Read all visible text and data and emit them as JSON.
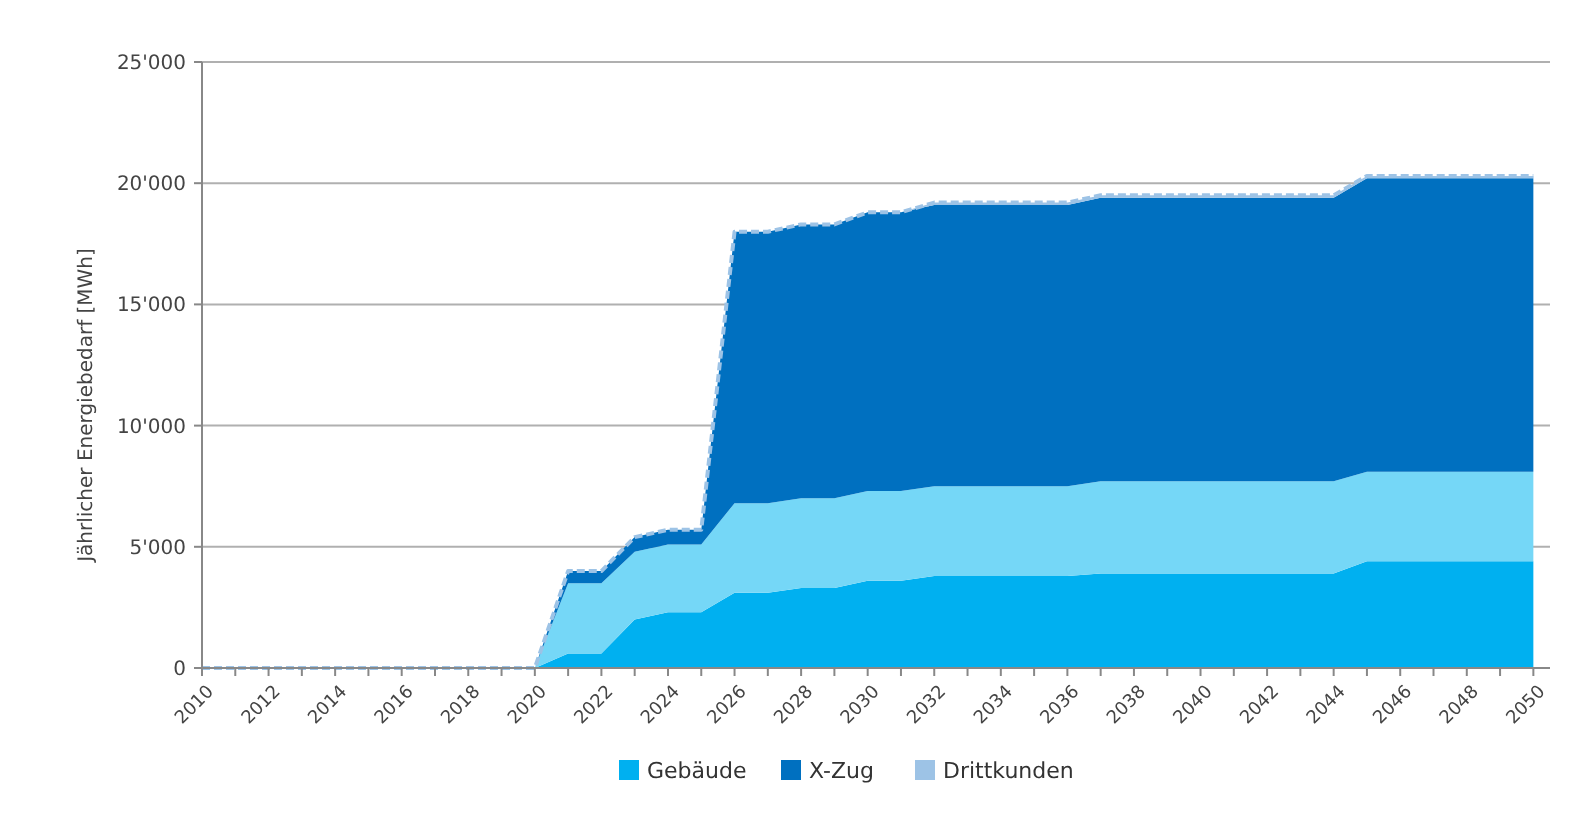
{
  "chart_data": {
    "type": "area",
    "stacked": true,
    "ylabel": "Jährlicher Energiebedarf [MWh]",
    "x": [
      2010,
      2011,
      2012,
      2013,
      2014,
      2015,
      2016,
      2017,
      2018,
      2019,
      2020,
      2021,
      2022,
      2023,
      2024,
      2025,
      2026,
      2027,
      2028,
      2029,
      2030,
      2031,
      2032,
      2033,
      2034,
      2035,
      2036,
      2037,
      2038,
      2039,
      2040,
      2041,
      2042,
      2043,
      2044,
      2045,
      2046,
      2047,
      2048,
      2049,
      2050
    ],
    "series": [
      {
        "name": "Gebäude",
        "color": "#00b0f0",
        "values": [
          0,
          0,
          0,
          0,
          0,
          0,
          0,
          0,
          0,
          0,
          0,
          600,
          600,
          2000,
          2300,
          2300,
          3100,
          3100,
          3300,
          3300,
          3600,
          3600,
          3800,
          3800,
          3800,
          3800,
          3800,
          3900,
          3900,
          3900,
          3900,
          3900,
          3900,
          3900,
          3900,
          4400,
          4400,
          4400,
          4400,
          4400,
          4400
        ]
      },
      {
        "color": "#75d7f7",
        "values": [
          0,
          0,
          0,
          0,
          0,
          0,
          0,
          0,
          0,
          0,
          0,
          2900,
          2900,
          2800,
          2800,
          2800,
          3700,
          3700,
          3700,
          3700,
          3700,
          3700,
          3700,
          3700,
          3700,
          3700,
          3700,
          3800,
          3800,
          3800,
          3800,
          3800,
          3800,
          3800,
          3800,
          3700,
          3700,
          3700,
          3700,
          3700,
          3700
        ]
      },
      {
        "name": "X-Zug",
        "color": "#0070c0",
        "values": [
          0,
          0,
          0,
          0,
          0,
          0,
          0,
          0,
          0,
          0,
          0,
          500,
          500,
          600,
          600,
          600,
          11200,
          11200,
          11300,
          11300,
          11500,
          11500,
          11600,
          11600,
          11600,
          11600,
          11600,
          11700,
          11700,
          11700,
          11700,
          11700,
          11700,
          11700,
          11700,
          12100,
          12100,
          12100,
          12100,
          12100,
          12100
        ]
      },
      {
        "name": "Drittkunden",
        "color": "#9dc3e6",
        "line_style": "dashed",
        "values": [
          0,
          0,
          0,
          0,
          0,
          0,
          0,
          0,
          0,
          0,
          0,
          0,
          0,
          0,
          0,
          0,
          0,
          0,
          0,
          0,
          0,
          0,
          100,
          100,
          100,
          100,
          100,
          100,
          100,
          100,
          100,
          100,
          100,
          100,
          100,
          100,
          100,
          100,
          100,
          100,
          100
        ]
      }
    ],
    "xlim": [
      2010,
      2050.5
    ],
    "xticks": [
      2010,
      {
        "value": 2011,
        "label": null
      },
      2012,
      {
        "value": 2013,
        "label": null
      },
      2014,
      {
        "value": 2015,
        "label": null
      },
      2016,
      {
        "value": 2017,
        "label": null
      },
      2018,
      {
        "value": 2019,
        "label": null
      },
      2020,
      {
        "value": 2021,
        "label": null
      },
      2022,
      {
        "value": 2023,
        "label": null
      },
      2024,
      {
        "value": 2025,
        "label": null
      },
      2026,
      {
        "value": 2027,
        "label": null
      },
      2028,
      {
        "value": 2029,
        "label": null
      },
      2030,
      {
        "value": 2031,
        "label": null
      },
      2032,
      {
        "value": 2033,
        "label": null
      },
      2034,
      {
        "value": 2035,
        "label": null
      },
      2036,
      {
        "value": 2037,
        "label": null
      },
      2038,
      {
        "value": 2039,
        "label": null
      },
      2040,
      {
        "value": 2041,
        "label": null
      },
      2042,
      {
        "value": 2043,
        "label": null
      },
      2044,
      {
        "value": 2045,
        "label": null
      },
      2046,
      {
        "value": 2047,
        "label": null
      },
      2048,
      {
        "value": 2049,
        "label": null
      },
      2050
    ],
    "ylim": [
      0,
      25000
    ],
    "yticks": [
      {
        "value": 0,
        "label": "0"
      },
      {
        "value": 5000,
        "label": "5'000"
      },
      {
        "value": 10000,
        "label": "10'000"
      },
      {
        "value": 15000,
        "label": "15'000"
      },
      {
        "value": 20000,
        "label": "20'000"
      },
      {
        "value": 25000,
        "label": "25'000"
      }
    ],
    "grid": "y",
    "legend": "bottom"
  }
}
